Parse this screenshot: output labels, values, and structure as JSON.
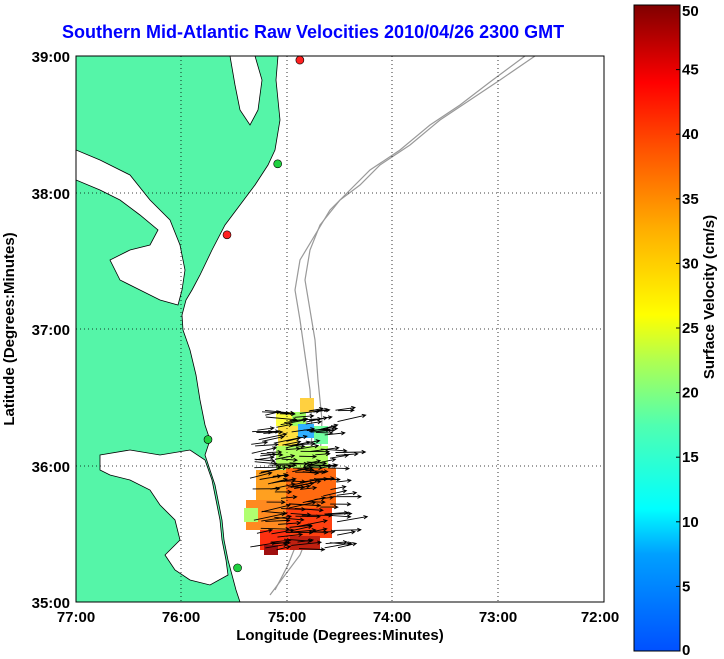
{
  "title": "Southern Mid-Atlantic Raw Velocities 2010/04/26 2300 GMT",
  "map": {
    "xlabel": "Longitude (Degrees:Minutes)",
    "ylabel": "Latitude (Degrees:Minutes)",
    "xticks": [
      "77:00",
      "76:00",
      "75:00",
      "74:00",
      "73:00",
      "72:00"
    ],
    "yticks": [
      "39:00",
      "38:00",
      "37:00",
      "36:00",
      "35:00"
    ],
    "lon_range": [
      -77,
      -72
    ],
    "lat_range": [
      35,
      39
    ],
    "grid": "dotted",
    "land_color": "#55f5a8",
    "contour_color": "#999999",
    "stations": [
      {
        "lon": -74.88,
        "lat": 38.97,
        "status": "red"
      },
      {
        "lon": -75.09,
        "lat": 38.21,
        "status": "green"
      },
      {
        "lon": -75.57,
        "lat": 37.69,
        "status": "red"
      },
      {
        "lon": -75.75,
        "lat": 36.19,
        "status": "green"
      },
      {
        "lon": -75.47,
        "lat": 35.25,
        "status": "green"
      }
    ]
  },
  "colorbar": {
    "label": "Surface Velocity (cm/s)",
    "min": 0,
    "max": 50,
    "ticks": [
      "0",
      "5",
      "10",
      "15",
      "20",
      "25",
      "30",
      "35",
      "40",
      "45",
      "50"
    ],
    "colormap": "jet"
  }
}
